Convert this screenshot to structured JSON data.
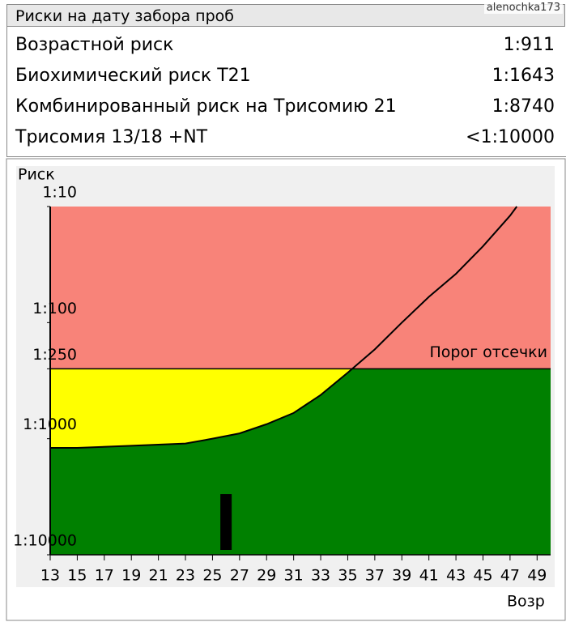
{
  "header": {
    "title": "Риски на дату забора проб",
    "watermark": "alenochka173"
  },
  "risks": [
    {
      "label": "Возрастной риск",
      "value": "1:911"
    },
    {
      "label": "Биохимический риск T21",
      "value": "1:1643"
    },
    {
      "label": "Комбинированный риск на Трисомию 21",
      "value": "1:8740"
    },
    {
      "label": "Трисомия 13/18 +NT",
      "value": "<1:10000"
    }
  ],
  "chart_data": {
    "type": "line",
    "ylabel": "Риск",
    "xlabel": "Возр",
    "x": [
      13,
      15,
      19,
      23,
      25,
      27,
      29,
      31,
      33,
      35,
      37,
      39,
      41,
      43,
      45,
      47,
      47.5
    ],
    "series": [
      {
        "color": "#000000",
        "values": [
          1200,
          1200,
          1150,
          1100,
          1000,
          900,
          750,
          600,
          420,
          270,
          170,
          100,
          60,
          38,
          22,
          12,
          10
        ]
      }
    ],
    "xlim": [
      13,
      50
    ],
    "xticks": [
      13,
      15,
      17,
      19,
      21,
      23,
      25,
      27,
      29,
      31,
      33,
      35,
      37,
      39,
      41,
      43,
      45,
      47,
      49
    ],
    "ylim": [
      10,
      10000
    ],
    "log_scale": true,
    "yticks": [
      {
        "value": 10,
        "label": "1:10"
      },
      {
        "value": 100,
        "label": "1:100"
      },
      {
        "value": 250,
        "label": "1:250"
      },
      {
        "value": 1000,
        "label": "1:1000"
      },
      {
        "value": 10000,
        "label": "1:10000"
      }
    ],
    "threshold": {
      "value": 250,
      "label": "Порог отсечки"
    },
    "marker": {
      "x": 26,
      "y": 3000
    },
    "colors": {
      "high": "#f88379",
      "mid": "#ffff00",
      "low": "#008000",
      "marker": "#000000"
    }
  }
}
